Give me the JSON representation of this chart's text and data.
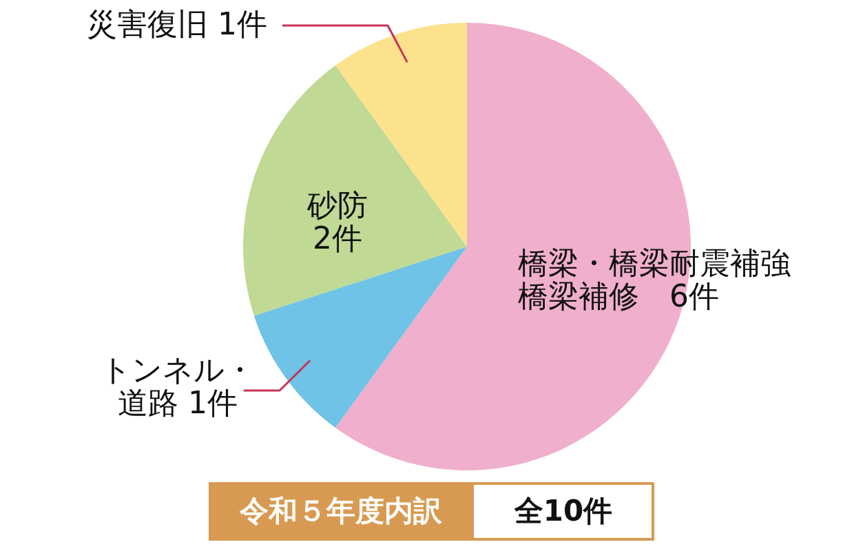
{
  "chart_data": {
    "type": "pie",
    "title": "令和５年度内訳",
    "categories": [
      "橋梁・橋梁耐震補強橋梁補修",
      "トンネル・道路",
      "砂防",
      "災害復旧"
    ],
    "values": [
      6,
      1,
      2,
      1
    ],
    "colors": [
      "#f0afcc",
      "#6ec3e6",
      "#c0d994",
      "#fde28e"
    ],
    "value_labels": [
      "6件",
      "1件",
      "2件",
      "1件"
    ],
    "annotations": [
      "全10件"
    ]
  }
}
